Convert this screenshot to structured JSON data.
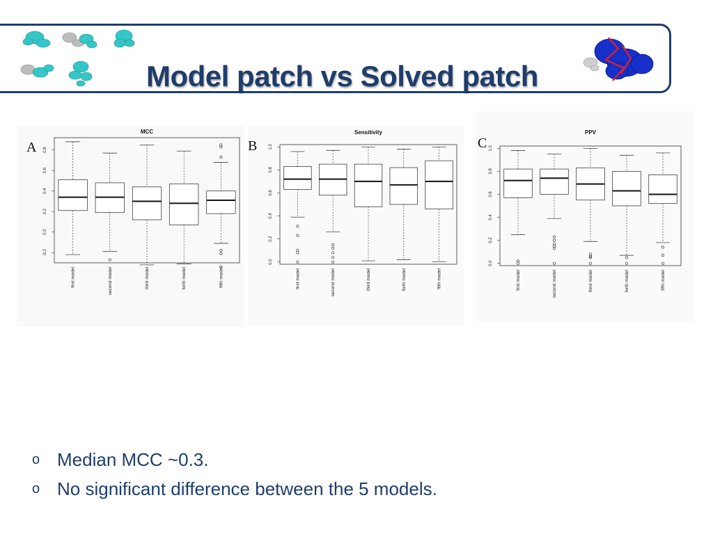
{
  "slide": {
    "title": "Model patch vs Solved patch",
    "bullets": [
      "Median MCC ~0.3.",
      "No significant difference between the 5 models."
    ],
    "bullet_marker": "o",
    "colors": {
      "title": "#1f3d6b",
      "frame": "#1f3d6b",
      "text": "#1f3d6b"
    }
  },
  "chart_data": [
    {
      "type": "box",
      "panel": "A",
      "title": "MCC",
      "categories": [
        "first model",
        "second model",
        "third model",
        "forth model",
        "fifth model"
      ],
      "ylim": [
        -0.3,
        0.92
      ],
      "yticks": [
        -0.2,
        0.0,
        0.2,
        0.4,
        0.6,
        0.8
      ],
      "ytick_labels": [
        "-0.2",
        "0.0",
        "0.2",
        "0.4",
        "0.6",
        "0.8"
      ],
      "boxes": [
        {
          "whisker_low": -0.22,
          "q1": 0.21,
          "median": 0.34,
          "q3": 0.51,
          "whisker_high": 0.88,
          "outliers": []
        },
        {
          "whisker_low": -0.19,
          "q1": 0.19,
          "median": 0.34,
          "q3": 0.48,
          "whisker_high": 0.77,
          "outliers": [
            -0.27
          ]
        },
        {
          "whisker_low": -0.32,
          "q1": 0.12,
          "median": 0.3,
          "q3": 0.44,
          "whisker_high": 0.85,
          "outliers": []
        },
        {
          "whisker_low": -0.31,
          "q1": 0.07,
          "median": 0.28,
          "q3": 0.47,
          "whisker_high": 0.79,
          "outliers": []
        },
        {
          "whisker_low": -0.11,
          "q1": 0.18,
          "median": 0.31,
          "q3": 0.4,
          "whisker_high": 0.68,
          "outliers": [
            -0.18,
            -0.21,
            -0.34,
            0.73,
            0.83,
            0.85
          ]
        }
      ]
    },
    {
      "type": "box",
      "panel": "B",
      "title": "Sensitivity",
      "categories": [
        "first model",
        "second model",
        "third model",
        "forth model",
        "fifth model"
      ],
      "ylim": [
        -0.02,
        1.02
      ],
      "yticks": [
        0.0,
        0.2,
        0.4,
        0.6,
        0.8,
        1.0
      ],
      "ytick_labels": [
        "0.0",
        "0.2",
        "0.4",
        "0.6",
        "0.8",
        "1.0"
      ],
      "boxes": [
        {
          "whisker_low": 0.39,
          "q1": 0.63,
          "median": 0.72,
          "q3": 0.83,
          "whisker_high": 0.96,
          "outliers": [
            0.0,
            0.08,
            0.1,
            0.23,
            0.31
          ]
        },
        {
          "whisker_low": 0.26,
          "q1": 0.58,
          "median": 0.72,
          "q3": 0.85,
          "whisker_high": 0.97,
          "outliers": [
            0.0,
            0.04,
            0.08,
            0.12,
            0.15
          ]
        },
        {
          "whisker_low": 0.01,
          "q1": 0.48,
          "median": 0.7,
          "q3": 0.85,
          "whisker_high": 1.0,
          "outliers": []
        },
        {
          "whisker_low": 0.02,
          "q1": 0.5,
          "median": 0.67,
          "q3": 0.82,
          "whisker_high": 0.98,
          "outliers": []
        },
        {
          "whisker_low": 0.0,
          "q1": 0.46,
          "median": 0.7,
          "q3": 0.88,
          "whisker_high": 1.0,
          "outliers": []
        }
      ]
    },
    {
      "type": "box",
      "panel": "C",
      "title": "PPV",
      "categories": [
        "first model",
        "second model",
        "third model",
        "forth model",
        "fifth model"
      ],
      "ylim": [
        -0.02,
        1.02
      ],
      "yticks": [
        0.0,
        0.2,
        0.4,
        0.6,
        0.8,
        1.0
      ],
      "ytick_labels": [
        "0.0",
        "0.2",
        "0.4",
        "0.6",
        "0.8",
        "1.0"
      ],
      "boxes": [
        {
          "whisker_low": 0.25,
          "q1": 0.57,
          "median": 0.72,
          "q3": 0.82,
          "whisker_high": 0.98,
          "outliers": [
            0.0,
            0.02
          ]
        },
        {
          "whisker_low": 0.39,
          "q1": 0.6,
          "median": 0.74,
          "q3": 0.82,
          "whisker_high": 0.95,
          "outliers": [
            0.0,
            0.13,
            0.15,
            0.17,
            0.2,
            0.23
          ]
        },
        {
          "whisker_low": 0.19,
          "q1": 0.55,
          "median": 0.69,
          "q3": 0.83,
          "whisker_high": 1.0,
          "outliers": [
            0.0,
            0.05,
            0.06,
            0.08
          ]
        },
        {
          "whisker_low": 0.07,
          "q1": 0.5,
          "median": 0.63,
          "q3": 0.8,
          "whisker_high": 0.94,
          "outliers": [
            0.0,
            0.05
          ]
        },
        {
          "whisker_low": 0.18,
          "q1": 0.52,
          "median": 0.6,
          "q3": 0.77,
          "whisker_high": 0.96,
          "outliers": [
            0.0,
            0.07,
            0.14
          ]
        }
      ]
    }
  ]
}
